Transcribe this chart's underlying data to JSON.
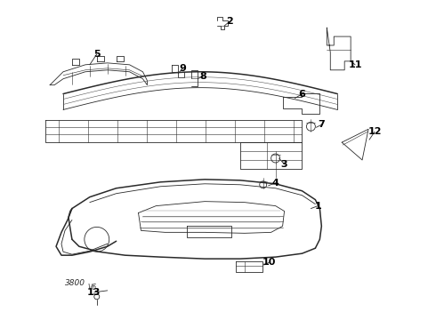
{
  "background": "#ffffff",
  "line_color": "#2a2a2a",
  "label_color": "#000000",
  "lw_main": 1.1,
  "lw_thin": 0.6,
  "lw_detail": 0.4,
  "figsize": [
    4.9,
    3.6
  ],
  "dpi": 100
}
